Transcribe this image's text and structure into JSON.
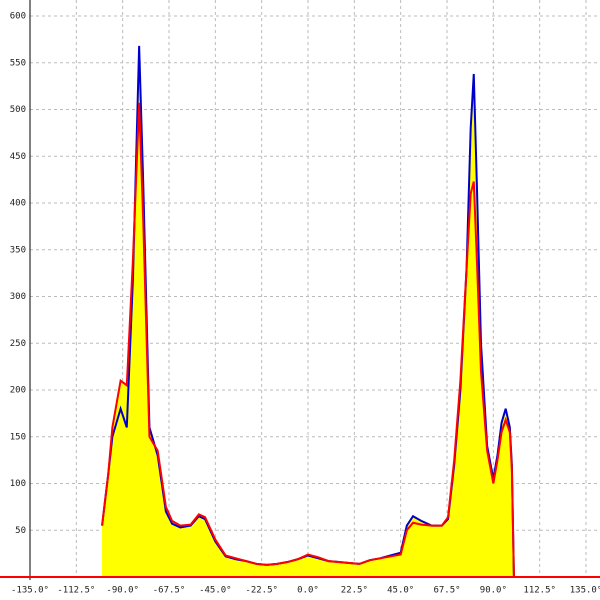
{
  "chart_data": {
    "type": "line",
    "x": [
      -100,
      -97,
      -95,
      -91,
      -88,
      -85,
      -82,
      -80,
      -77,
      -73,
      -69,
      -66,
      -62,
      -57,
      -53,
      -50,
      -45,
      -40,
      -35,
      -30,
      -25,
      -20,
      -15,
      -10,
      -5,
      0,
      5,
      10,
      15,
      20,
      25,
      30,
      35,
      40,
      45,
      48,
      51,
      55,
      60,
      65,
      68,
      71,
      74,
      77,
      79,
      80.5,
      82,
      84,
      87,
      90,
      92,
      94,
      96,
      98,
      99,
      100
    ],
    "series": [
      {
        "color": "#0000cc",
        "values": [
          55,
          110,
          150,
          180,
          160,
          320,
          568,
          420,
          160,
          130,
          70,
          57,
          53,
          55,
          65,
          62,
          38,
          22,
          19,
          17,
          14,
          13,
          14,
          16,
          19,
          23,
          20,
          17,
          16,
          15,
          14,
          18,
          20,
          23,
          26,
          55,
          65,
          60,
          55,
          55,
          62,
          120,
          200,
          330,
          480,
          538,
          420,
          250,
          140,
          105,
          130,
          165,
          180,
          160,
          120,
          0
        ]
      },
      {
        "color": "#ff0000",
        "values": [
          55,
          110,
          160,
          210,
          205,
          340,
          507,
          380,
          150,
          135,
          75,
          60,
          55,
          56,
          67,
          64,
          40,
          23,
          20,
          17,
          14,
          13,
          14,
          16,
          19,
          24,
          21,
          17,
          16,
          15,
          14,
          18,
          20,
          22,
          24,
          50,
          58,
          56,
          55,
          55,
          64,
          125,
          210,
          330,
          410,
          423,
          340,
          220,
          135,
          100,
          125,
          155,
          168,
          155,
          115,
          0
        ]
      }
    ],
    "fill_color": "#ffff00",
    "xlim": [
      -135,
      135
    ],
    "xticks": [
      {
        "value": -135,
        "label": "-135.0°"
      },
      {
        "value": -112.5,
        "label": "-112.5°"
      },
      {
        "value": -90,
        "label": "-90.0°"
      },
      {
        "value": -67.5,
        "label": "-67.5°"
      },
      {
        "value": -45,
        "label": "-45.0°"
      },
      {
        "value": -22.5,
        "label": "-22.5°"
      },
      {
        "value": 0,
        "label": "0.0°"
      },
      {
        "value": 22.5,
        "label": "22.5°"
      },
      {
        "value": 45,
        "label": "45.0°"
      },
      {
        "value": 67.5,
        "label": "67.5°"
      },
      {
        "value": 90,
        "label": "90.0°"
      },
      {
        "value": 112.5,
        "label": "112.5°"
      },
      {
        "value": 135,
        "label": "135.0°"
      }
    ],
    "ylim": [
      0,
      600
    ],
    "yticks": [
      50,
      100,
      150,
      200,
      250,
      300,
      350,
      400,
      450,
      500,
      550,
      600
    ],
    "grid": true
  }
}
